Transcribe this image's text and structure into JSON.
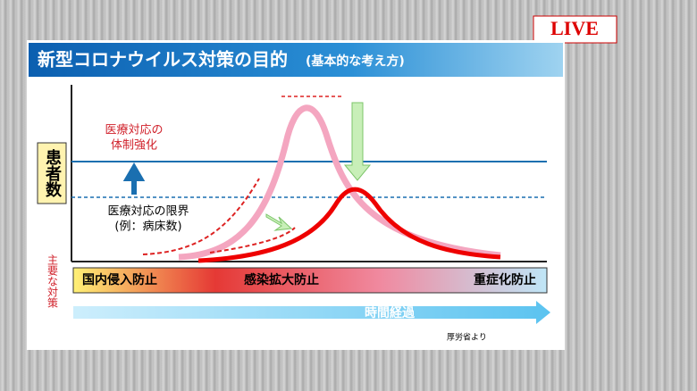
{
  "header": {
    "live": "LIVE",
    "title": "新型コロナウイルス対策の目的",
    "subtitle": "(基本的な考え方)"
  },
  "diagram": {
    "y_label": "患者数",
    "capacity_up": [
      "医療対応の",
      "体制強化"
    ],
    "limit": "医療対応の限界",
    "limit_example": "(例：病床数)",
    "measures_label": "主要な対策",
    "phases": [
      "国内侵入防止",
      "感染拡大防止",
      "重症化防止"
    ],
    "time_label": "時間経過",
    "source": "厚労省より"
  }
}
